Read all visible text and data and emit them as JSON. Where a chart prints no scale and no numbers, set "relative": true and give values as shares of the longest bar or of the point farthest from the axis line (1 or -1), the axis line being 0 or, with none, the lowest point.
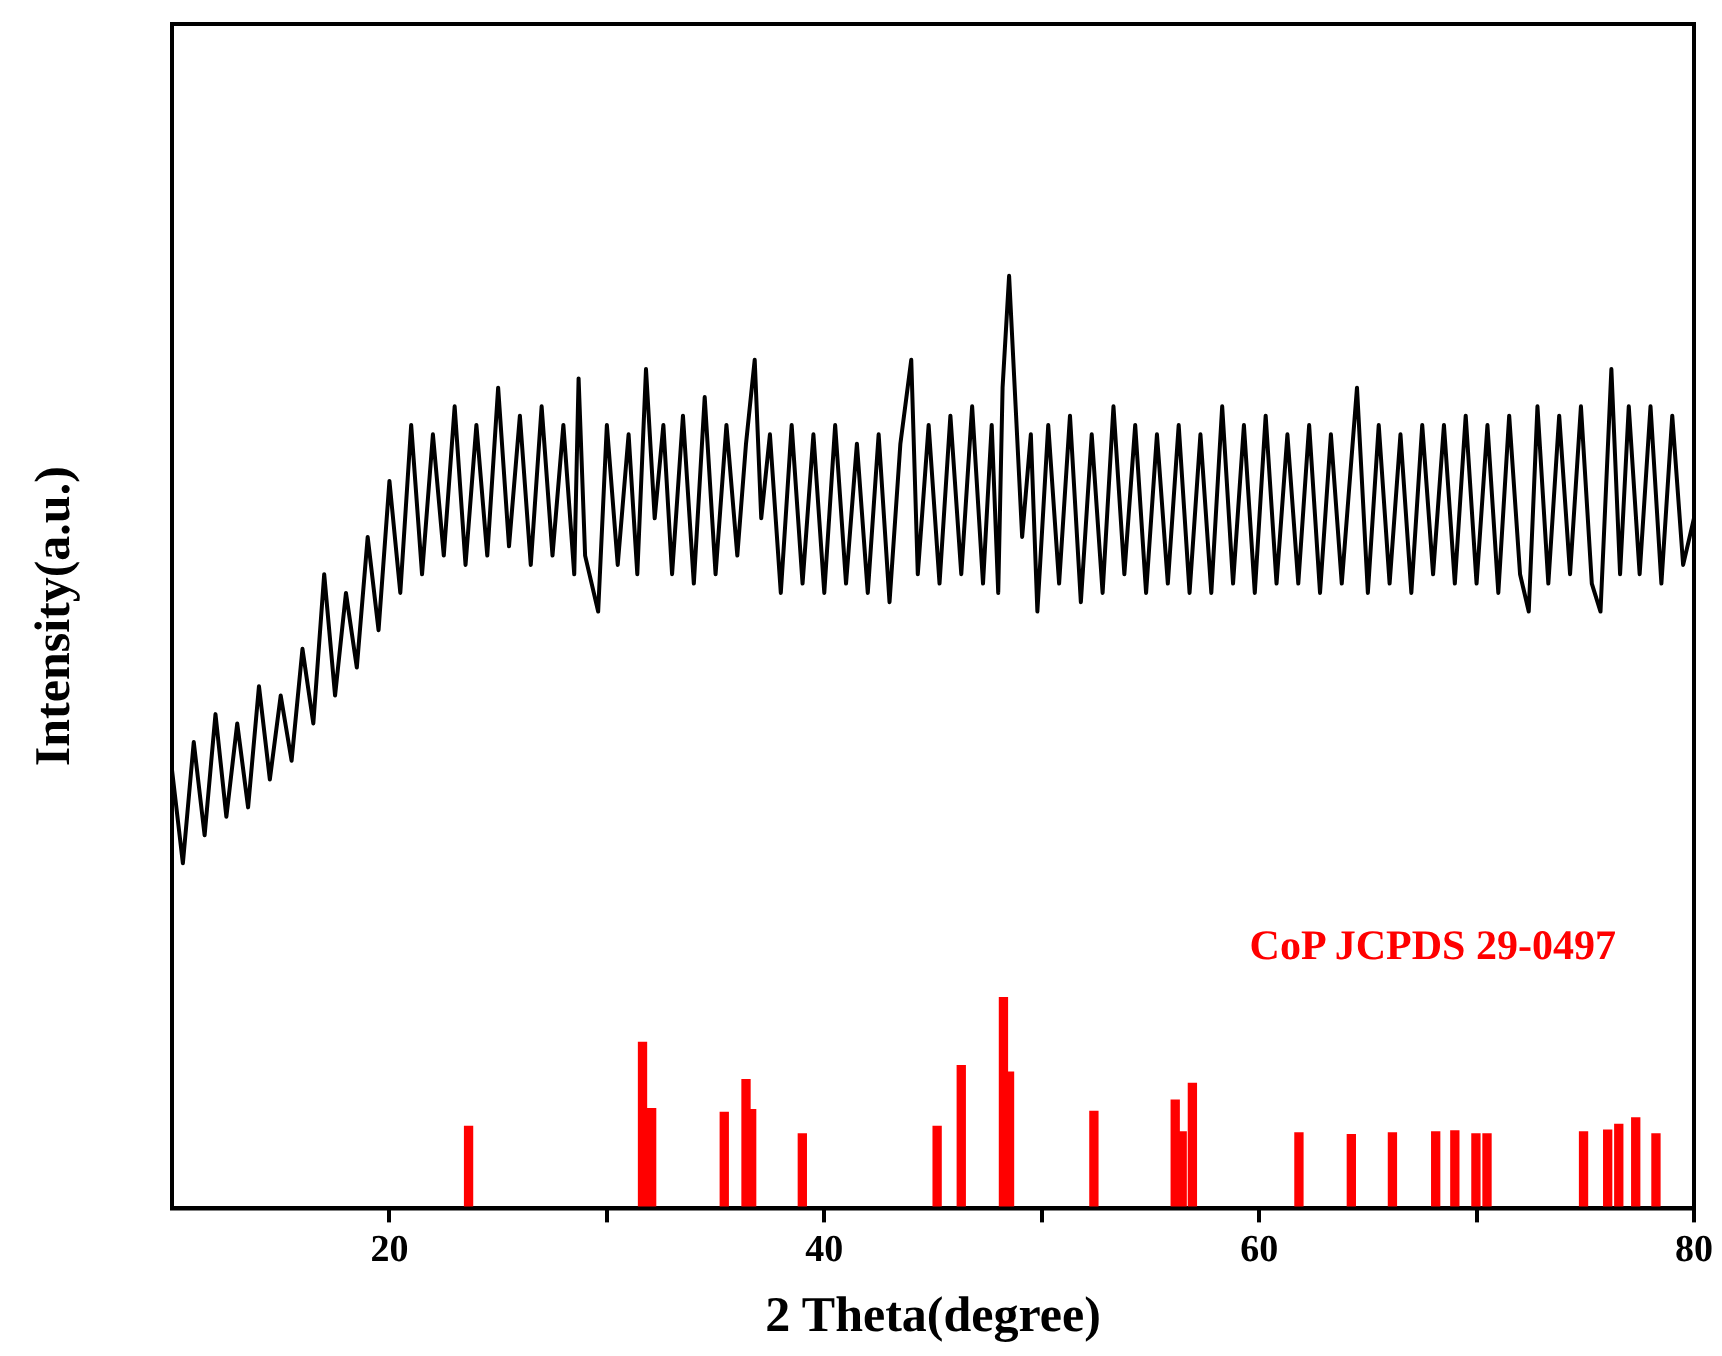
{
  "chart_data": {
    "type": "line",
    "xlabel": "2 Theta(degree)",
    "ylabel": "Intensity(a.u.)",
    "relative": true,
    "xlim": [
      10,
      80
    ],
    "xticks": [
      20,
      {
        "value": 30,
        "label": null
      },
      40,
      {
        "value": 50,
        "label": null
      },
      60,
      {
        "value": 70,
        "label": null
      },
      80
    ],
    "grid": false,
    "legend": false,
    "marker": "none",
    "line_style": "solid",
    "series": [
      {
        "color": "#000000",
        "x": [
          10.0,
          10.5,
          11.0,
          11.5,
          12.0,
          12.5,
          13.0,
          13.5,
          14.0,
          14.5,
          15.0,
          15.5,
          16.0,
          16.5,
          17.0,
          17.5,
          18.0,
          18.5,
          19.0,
          19.5,
          20.0,
          20.5,
          21.0,
          21.5,
          22.0,
          22.5,
          23.0,
          23.5,
          24.0,
          24.5,
          25.0,
          25.5,
          26.0,
          26.5,
          27.0,
          27.5,
          28.0,
          28.5,
          28.7,
          29.0,
          29.6,
          30.0,
          30.5,
          31.0,
          31.4,
          31.8,
          32.2,
          32.6,
          33.0,
          33.5,
          34.0,
          34.5,
          35.0,
          35.5,
          36.0,
          36.4,
          36.8,
          37.1,
          37.5,
          38.0,
          38.5,
          39.0,
          39.5,
          40.0,
          40.5,
          41.0,
          41.5,
          42.0,
          42.5,
          43.0,
          43.5,
          44.0,
          44.3,
          44.8,
          45.3,
          45.8,
          46.3,
          46.8,
          47.3,
          47.7,
          48.0,
          48.2,
          48.5,
          48.8,
          49.1,
          49.5,
          49.8,
          50.3,
          50.8,
          51.3,
          51.8,
          52.3,
          52.8,
          53.3,
          53.8,
          54.3,
          54.8,
          55.3,
          55.8,
          56.3,
          56.8,
          57.3,
          57.8,
          58.3,
          58.8,
          59.3,
          59.8,
          60.3,
          60.8,
          61.3,
          61.8,
          62.3,
          62.8,
          63.3,
          63.8,
          64.5,
          65.0,
          65.5,
          66.0,
          66.5,
          67.0,
          67.5,
          68.0,
          68.5,
          69.0,
          69.5,
          70.0,
          70.5,
          71.0,
          71.5,
          72.0,
          72.4,
          72.8,
          73.3,
          73.8,
          74.3,
          74.8,
          75.3,
          75.7,
          76.2,
          76.6,
          77.0,
          77.5,
          78.0,
          78.5,
          79.0,
          79.5,
          80.0
        ],
        "values": [
          0.47,
          0.37,
          0.5,
          0.4,
          0.53,
          0.42,
          0.52,
          0.43,
          0.56,
          0.46,
          0.55,
          0.48,
          0.6,
          0.52,
          0.68,
          0.55,
          0.66,
          0.58,
          0.72,
          0.62,
          0.78,
          0.66,
          0.84,
          0.68,
          0.83,
          0.7,
          0.86,
          0.69,
          0.84,
          0.7,
          0.88,
          0.71,
          0.85,
          0.69,
          0.86,
          0.7,
          0.84,
          0.68,
          0.89,
          0.7,
          0.64,
          0.84,
          0.69,
          0.83,
          0.68,
          0.9,
          0.74,
          0.84,
          0.68,
          0.85,
          0.67,
          0.87,
          0.68,
          0.84,
          0.7,
          0.82,
          0.91,
          0.74,
          0.83,
          0.66,
          0.84,
          0.67,
          0.83,
          0.66,
          0.84,
          0.67,
          0.82,
          0.66,
          0.83,
          0.65,
          0.82,
          0.91,
          0.68,
          0.84,
          0.67,
          0.85,
          0.68,
          0.86,
          0.67,
          0.84,
          0.66,
          0.88,
          1.0,
          0.86,
          0.72,
          0.83,
          0.64,
          0.84,
          0.67,
          0.85,
          0.65,
          0.83,
          0.66,
          0.86,
          0.68,
          0.84,
          0.66,
          0.83,
          0.67,
          0.84,
          0.66,
          0.83,
          0.66,
          0.86,
          0.67,
          0.84,
          0.66,
          0.85,
          0.67,
          0.83,
          0.67,
          0.84,
          0.66,
          0.83,
          0.67,
          0.88,
          0.66,
          0.84,
          0.67,
          0.83,
          0.66,
          0.84,
          0.68,
          0.84,
          0.67,
          0.85,
          0.67,
          0.84,
          0.66,
          0.85,
          0.68,
          0.64,
          0.86,
          0.67,
          0.85,
          0.68,
          0.86,
          0.67,
          0.64,
          0.9,
          0.68,
          0.86,
          0.68,
          0.86,
          0.67,
          0.85,
          0.69,
          0.74
        ]
      },
      {
        "type": "bar",
        "name": "CoP JCPDS 29-0497",
        "color": "#ff0000",
        "x": [
          23.64,
          31.64,
          32.06,
          35.4,
          36.4,
          36.66,
          38.99,
          45.19,
          46.3,
          48.24,
          48.52,
          52.4,
          56.14,
          56.46,
          56.93,
          61.83,
          64.24,
          66.13,
          68.12,
          69.0,
          69.97,
          70.48,
          74.92,
          76.03,
          76.54,
          77.32,
          78.25
        ],
        "values": [
          0.088,
          0.178,
          0.107,
          0.103,
          0.138,
          0.106,
          0.08,
          0.088,
          0.153,
          0.226,
          0.146,
          0.104,
          0.116,
          0.082,
          0.134,
          0.081,
          0.079,
          0.081,
          0.082,
          0.083,
          0.08,
          0.08,
          0.082,
          0.084,
          0.09,
          0.097,
          0.08
        ]
      }
    ]
  }
}
